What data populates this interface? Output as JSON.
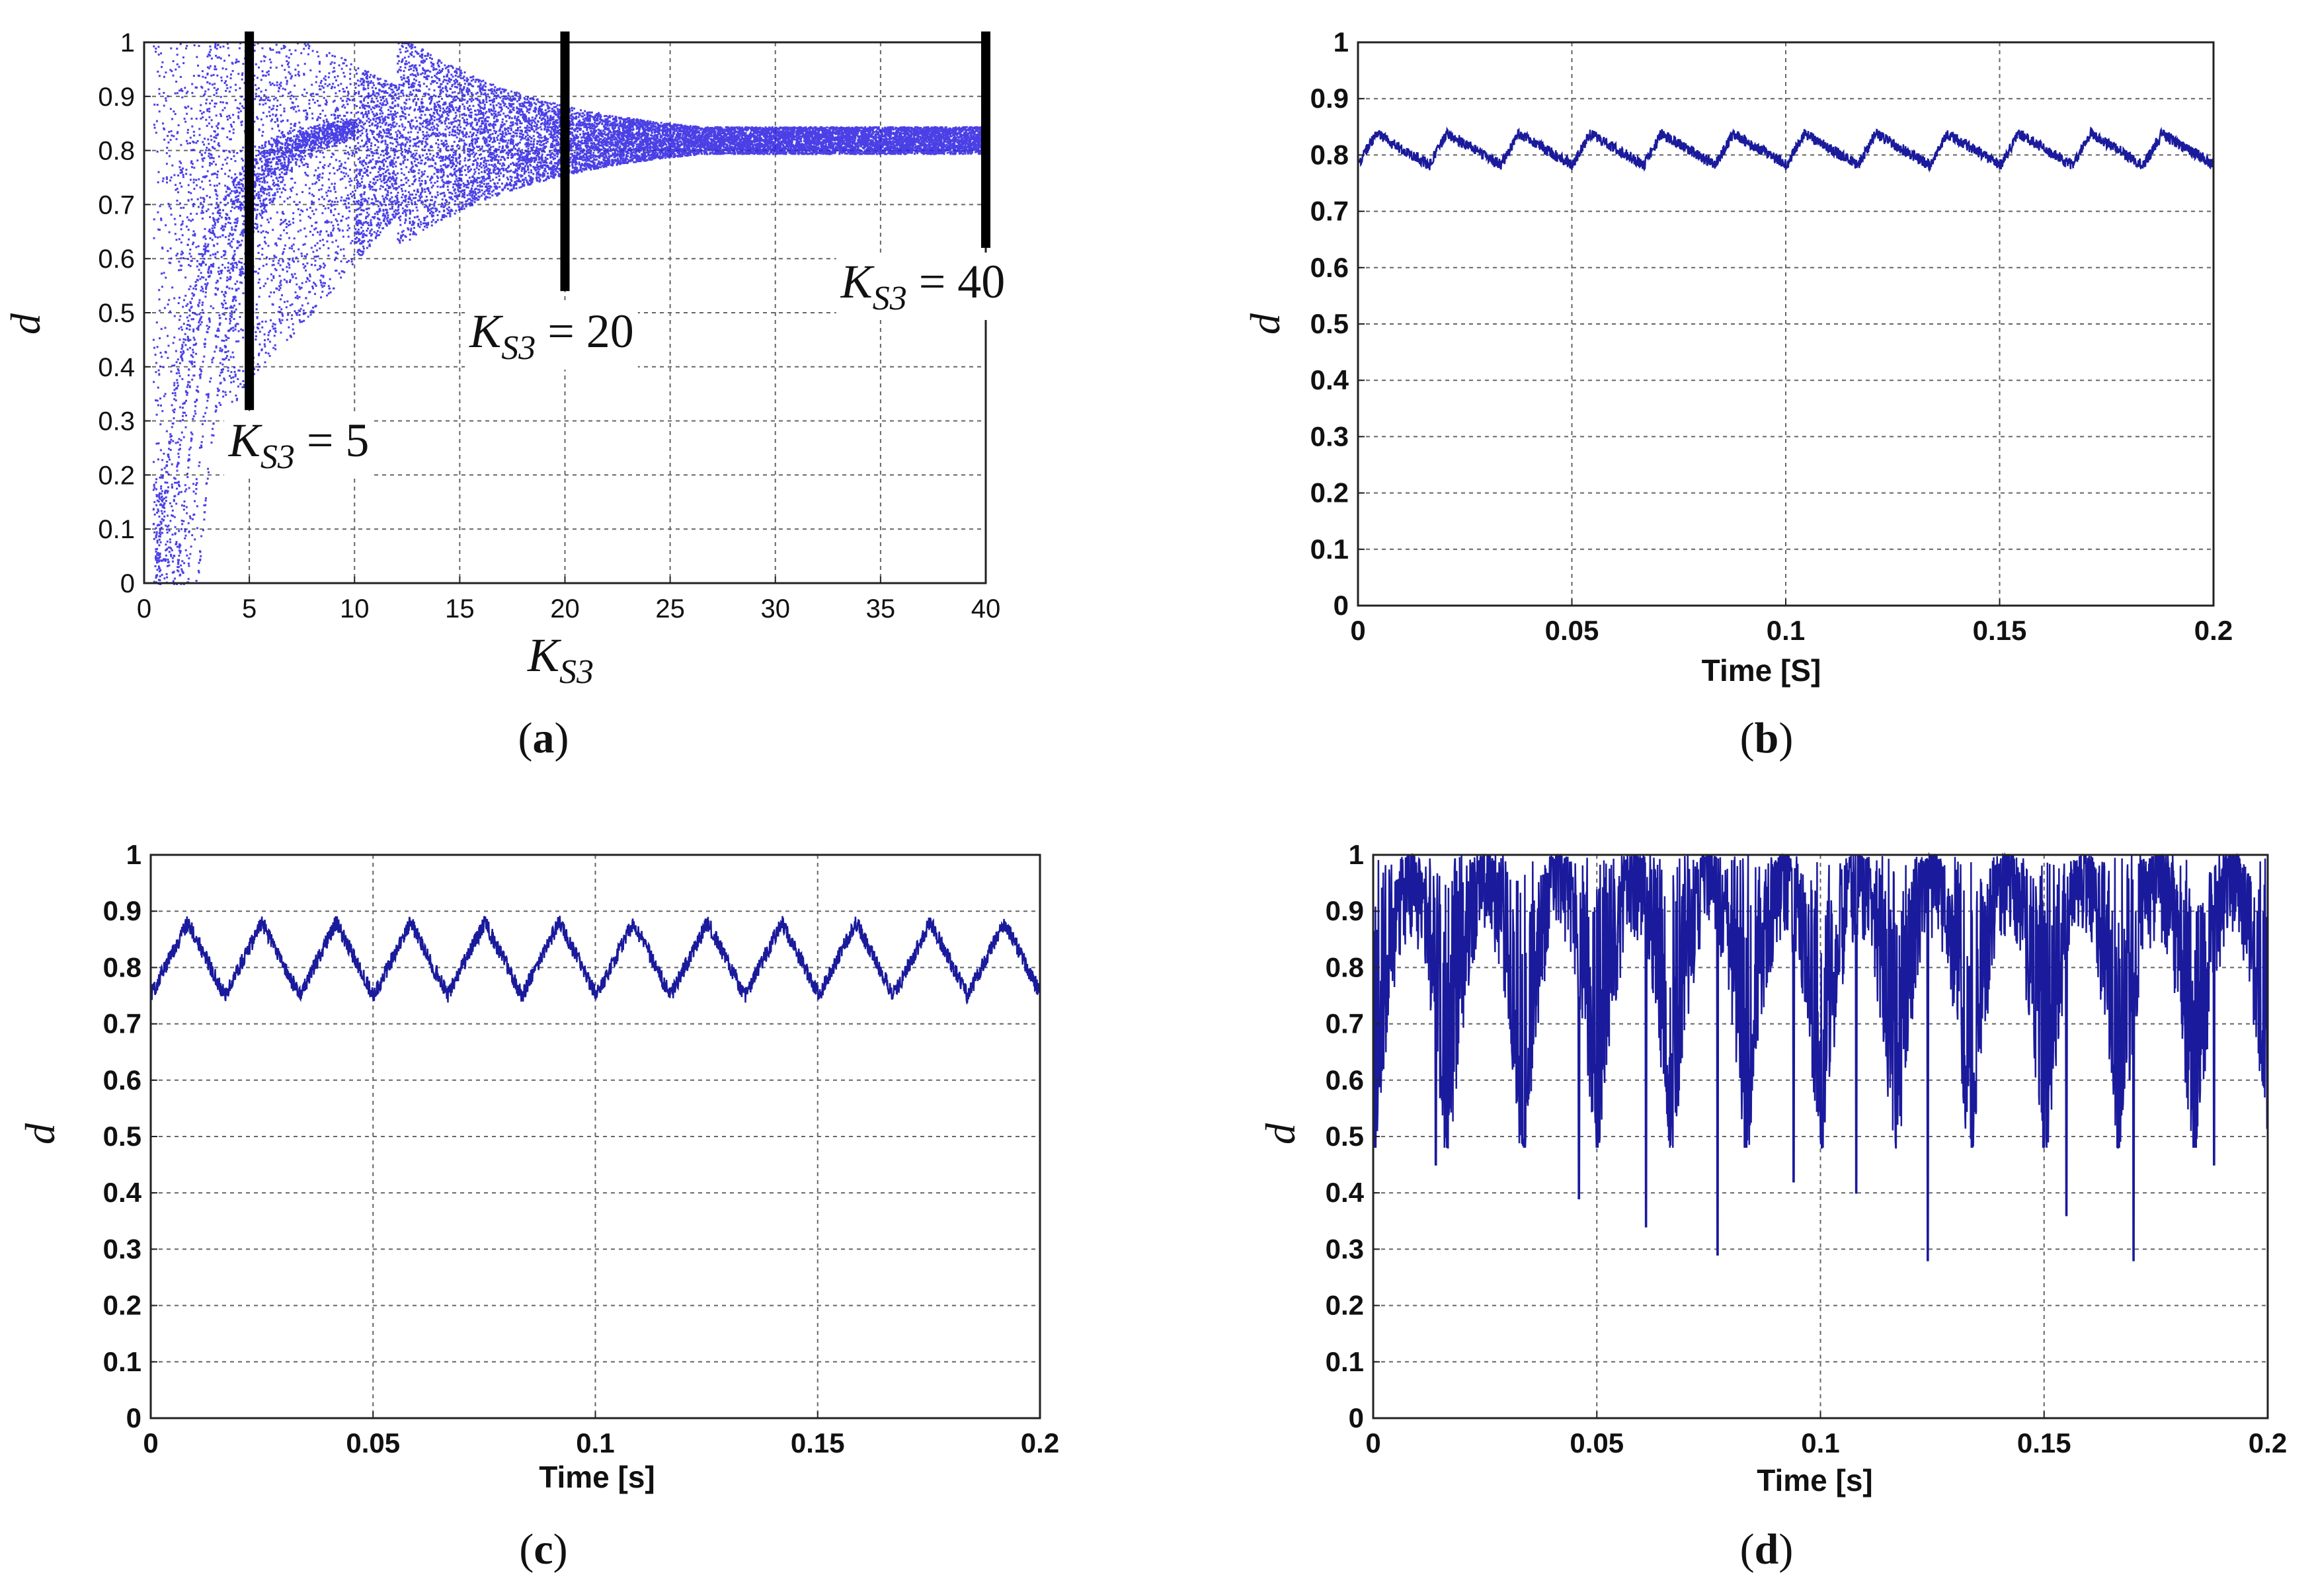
{
  "chart_data": [
    {
      "id": "a",
      "type": "scatter",
      "title": "",
      "caption": "a",
      "xlabel": "K_S3",
      "xlabel_main": "K",
      "xlabel_sub": "S3",
      "ylabel": "d",
      "xlim": [
        0,
        40
      ],
      "ylim": [
        0,
        1
      ],
      "xticks": [
        "0",
        "5",
        "10",
        "15",
        "20",
        "25",
        "30",
        "35",
        "40"
      ],
      "yticks": [
        "0",
        "0.1",
        "0.2",
        "0.3",
        "0.4",
        "0.5",
        "0.6",
        "0.7",
        "0.8",
        "0.9",
        "1"
      ],
      "grid": true,
      "point_color": "#2a1fe0",
      "markers": [
        {
          "x": 5,
          "y_low": 0.32,
          "y_high": 1.02,
          "label_main": "K",
          "label_sub": "S3",
          "label_rest": " = 5"
        },
        {
          "x": 20,
          "y_low": 0.54,
          "y_high": 1.02,
          "label_main": "K",
          "label_sub": "S3",
          "label_rest": " = 20"
        },
        {
          "x": 40,
          "y_low": 0.62,
          "y_high": 1.02,
          "label_main": "K",
          "label_sub": "S3",
          "label_rest": " = 40"
        }
      ]
    },
    {
      "id": "b",
      "type": "line",
      "caption": "b",
      "xlabel": "Time [S]",
      "ylabel": "d",
      "xlim": [
        0,
        0.2
      ],
      "ylim": [
        0,
        1
      ],
      "xticks": [
        "0",
        "0.05",
        "0.1",
        "0.15",
        "0.2"
      ],
      "yticks": [
        "0",
        "0.1",
        "0.2",
        "0.3",
        "0.4",
        "0.5",
        "0.6",
        "0.7",
        "0.8",
        "0.9",
        "1"
      ],
      "grid": true,
      "line_color": "#1a1a9c",
      "series": [
        {
          "name": "d",
          "mean": 0.81,
          "period": 0.0167,
          "min": 0.77,
          "max": 0.85
        }
      ]
    },
    {
      "id": "c",
      "type": "line",
      "caption": "c",
      "xlabel": "Time [s]",
      "ylabel": "d",
      "xlim": [
        0,
        0.2
      ],
      "ylim": [
        0,
        1
      ],
      "xticks": [
        "0",
        "0.05",
        "0.1",
        "0.15",
        "0.2"
      ],
      "yticks": [
        "0",
        "0.1",
        "0.2",
        "0.3",
        "0.4",
        "0.5",
        "0.6",
        "0.7",
        "0.8",
        "0.9",
        "1"
      ],
      "grid": true,
      "line_color": "#1a1a9c",
      "series": [
        {
          "name": "d",
          "mean": 0.815,
          "period": 0.0167,
          "min": 0.74,
          "max": 0.9
        }
      ]
    },
    {
      "id": "d",
      "type": "line",
      "caption": "d",
      "xlabel": "Time [s]",
      "ylabel": "d",
      "xlim": [
        0,
        0.2
      ],
      "ylim": [
        0,
        1
      ],
      "xticks": [
        "0",
        "0.05",
        "0.1",
        "0.15",
        "0.2"
      ],
      "yticks": [
        "0",
        "0.1",
        "0.2",
        "0.3",
        "0.4",
        "0.5",
        "0.6",
        "0.7",
        "0.8",
        "0.9",
        "1"
      ],
      "grid": true,
      "line_color": "#1a1a9c",
      "series": [
        {
          "name": "d",
          "min": 0.28,
          "max": 1.0,
          "period": 0.0167,
          "dips": [
            [
              0.014,
              0.45
            ],
            [
              0.046,
              0.39
            ],
            [
              0.061,
              0.34
            ],
            [
              0.077,
              0.29
            ],
            [
              0.094,
              0.42
            ],
            [
              0.108,
              0.4
            ],
            [
              0.124,
              0.28
            ],
            [
              0.155,
              0.36
            ],
            [
              0.17,
              0.28
            ],
            [
              0.188,
              0.45
            ]
          ]
        }
      ]
    }
  ]
}
